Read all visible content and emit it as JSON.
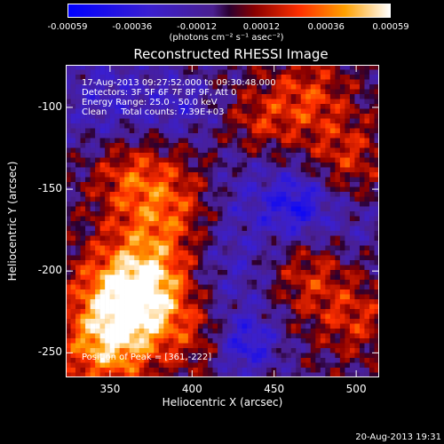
{
  "colorbar": {
    "ticks": [
      "-0.00059",
      "-0.00036",
      "-0.00012",
      "0.00012",
      "0.00036",
      "0.00059"
    ],
    "units": "(photons cm⁻² s⁻¹ asec⁻²)",
    "range": [
      -0.00059,
      0.00059
    ]
  },
  "chart_data": {
    "type": "heatmap",
    "title": "Reconstructed RHESSI Image",
    "xlabel": "Heliocentric X (arcsec)",
    "ylabel": "Heliocentric Y (arcsec)",
    "xlim": [
      323,
      514
    ],
    "ylim": [
      -265,
      -74
    ],
    "x_ticks": [
      "350",
      "400",
      "450",
      "500"
    ],
    "y_ticks": [
      "-100",
      "-150",
      "-200",
      "-250"
    ],
    "x_tick_values": [
      350,
      400,
      450,
      500
    ],
    "y_tick_values": [
      -100,
      -150,
      -200,
      -250
    ],
    "annotations": [
      "17-Aug-2013 09:27:52.000 to 09:30:48.000",
      "Detectors: 3F 5F 6F 7F 8F 9F, Att 0",
      "Energy Range: 25.0 - 50.0 keV",
      "Clean     Total counts: 7.39E+03"
    ],
    "peak_label": "Position of Peak = [361,-222]",
    "peak": [
      361,
      -222
    ]
  },
  "footer": {
    "timestamp": "20-Aug-2013 19:31"
  }
}
